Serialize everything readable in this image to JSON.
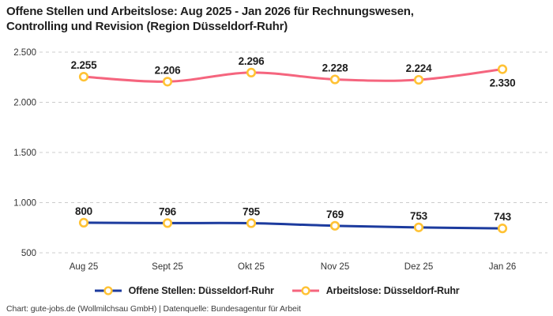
{
  "title": "Offene Stellen und Arbeitslose: Aug 2025 - Jan 2026 für Rechnungswesen, Controlling und Revision (Region Düsseldorf-Ruhr)",
  "footer": "Chart: gute-jobs.de (Wollmilchsau GmbH) | Datenquelle: Bundesagentur für Arbeit",
  "colors": {
    "offene": "#1c3b9e",
    "arbeitslose": "#f5657e",
    "marker": "#ffc234",
    "grid": "#cccccc",
    "label_text": "#1d1d1d"
  },
  "chart_data": {
    "type": "line",
    "categories": [
      "Aug 25",
      "Sept 25",
      "Okt 25",
      "Nov 25",
      "Dez 25",
      "Jan 26"
    ],
    "series": [
      {
        "name": "Offene Stellen: Düsseldorf-Ruhr",
        "color_key": "offene",
        "values": [
          800,
          796,
          795,
          769,
          753,
          743
        ],
        "labels": [
          "800",
          "796",
          "795",
          "769",
          "753",
          "743"
        ],
        "label_below_indices": []
      },
      {
        "name": "Arbeitslose: Düsseldorf-Ruhr",
        "color_key": "arbeitslose",
        "values": [
          2255,
          2206,
          2296,
          2228,
          2224,
          2330
        ],
        "labels": [
          "2.255",
          "2.206",
          "2.296",
          "2.228",
          "2.224",
          "2.330"
        ],
        "label_below_indices": [
          5
        ]
      }
    ],
    "y_ticks": [
      500,
      1000,
      1500,
      2000,
      2500
    ],
    "y_tick_labels": [
      "500",
      "1.000",
      "1.500",
      "2.000",
      "2.500"
    ],
    "ylim": [
      500,
      2500
    ],
    "xlabel": "",
    "ylabel": "",
    "grid": "horizontal-dashed",
    "legend_position": "bottom",
    "marker_style": "circle-yellow-white-fill"
  }
}
